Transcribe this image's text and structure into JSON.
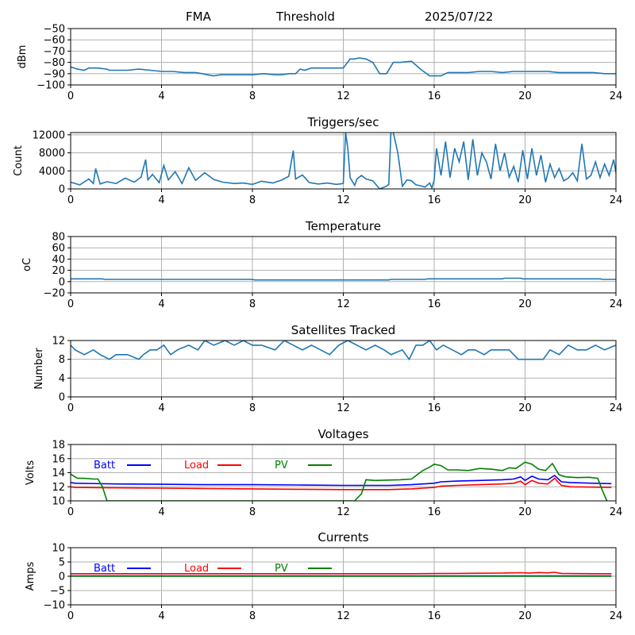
{
  "header": {
    "station": "FMA",
    "mode": "Threshold",
    "date": "2025/07/22"
  },
  "colors": {
    "series_default": "#1f77b4",
    "batt": "#0000ff",
    "load": "#ff0000",
    "pv": "#008000",
    "grid": "#b0b0b0"
  },
  "chart_data": [
    {
      "type": "line",
      "title": "",
      "xlabel": "",
      "ylabel": "dBm",
      "xlim": [
        0,
        24
      ],
      "ylim": [
        -100,
        -50
      ],
      "xticks": [
        0,
        4,
        8,
        12,
        16,
        20,
        24
      ],
      "yticks": [
        -100,
        -90,
        -80,
        -70,
        -60,
        -50
      ],
      "grid": true,
      "series": [
        {
          "color": "#1f77b4",
          "x": [
            0,
            0.3,
            0.6,
            0.8,
            1.2,
            1.6,
            1.7,
            2.5,
            3.0,
            3.5,
            4.0,
            4.5,
            5.0,
            5.5,
            5.8,
            6.0,
            6.3,
            6.6,
            7.0,
            7.5,
            8.0,
            8.5,
            9.0,
            9.3,
            9.6,
            9.9,
            10.1,
            10.3,
            10.6,
            11.0,
            11.5,
            12.0,
            12.3,
            12.5,
            12.7,
            13.0,
            13.3,
            13.6,
            13.9,
            14.2,
            14.5,
            15.0,
            15.4,
            15.8,
            16.0,
            16.3,
            16.6,
            16.9,
            17.2,
            17.5,
            18.0,
            18.5,
            19.0,
            19.5,
            20.0,
            20.5,
            21.0,
            21.5,
            22.0,
            22.5,
            23.0,
            23.5,
            24.0
          ],
          "y": [
            -84,
            -86,
            -87,
            -85,
            -85,
            -86,
            -87,
            -87,
            -86,
            -87,
            -88,
            -88,
            -89,
            -89,
            -90,
            -91,
            -92,
            -91,
            -91,
            -91,
            -91,
            -90,
            -91,
            -91,
            -90,
            -90,
            -86,
            -87,
            -85,
            -85,
            -85,
            -85,
            -77,
            -77,
            -76,
            -77,
            -80,
            -90,
            -90,
            -80,
            -80,
            -79,
            -86,
            -92,
            -92,
            -92,
            -89,
            -89,
            -89,
            -89,
            -88,
            -88,
            -89,
            -88,
            -88,
            -88,
            -88,
            -89,
            -89,
            -89,
            -89,
            -90,
            -90
          ]
        }
      ]
    },
    {
      "type": "line",
      "title": "Triggers/sec",
      "xlabel": "",
      "ylabel": "Count",
      "xlim": [
        0,
        24
      ],
      "ylim": [
        0,
        12500
      ],
      "xticks": [
        0,
        4,
        8,
        12,
        16,
        20,
        24
      ],
      "yticks": [
        0,
        4000,
        8000,
        12000
      ],
      "grid": true,
      "series": [
        {
          "color": "#1f77b4",
          "x": [
            0,
            0.4,
            0.8,
            1.0,
            1.1,
            1.3,
            1.6,
            2.0,
            2.4,
            2.8,
            3.1,
            3.3,
            3.4,
            3.6,
            3.9,
            4.1,
            4.3,
            4.6,
            4.9,
            5.2,
            5.5,
            5.9,
            6.3,
            6.7,
            7.2,
            7.6,
            8.0,
            8.4,
            8.9,
            9.3,
            9.6,
            9.8,
            9.9,
            10.2,
            10.5,
            10.9,
            11.3,
            11.7,
            12.0,
            12.1,
            12.2,
            12.3,
            12.5,
            12.6,
            12.8,
            13.0,
            13.3,
            13.6,
            13.9,
            14.0,
            14.1,
            14.2,
            14.4,
            14.6,
            14.8,
            15.0,
            15.2,
            15.4,
            15.6,
            15.8,
            15.9,
            16.0,
            16.1,
            16.3,
            16.5,
            16.7,
            16.9,
            17.1,
            17.3,
            17.5,
            17.7,
            17.9,
            18.1,
            18.3,
            18.5,
            18.7,
            18.9,
            19.1,
            19.3,
            19.5,
            19.7,
            19.9,
            20.1,
            20.3,
            20.5,
            20.7,
            20.9,
            21.1,
            21.3,
            21.5,
            21.7,
            21.9,
            22.1,
            22.3,
            22.5,
            22.7,
            22.9,
            23.1,
            23.3,
            23.5,
            23.7,
            23.9,
            24.0
          ],
          "y": [
            1500,
            900,
            2200,
            1200,
            4500,
            1100,
            1600,
            1200,
            2400,
            1500,
            2600,
            6500,
            2000,
            3200,
            1400,
            5200,
            2000,
            3800,
            1200,
            4700,
            1900,
            3600,
            2100,
            1500,
            1200,
            1300,
            1000,
            1700,
            1300,
            2000,
            2800,
            8500,
            2200,
            3100,
            1400,
            1100,
            1300,
            1000,
            1200,
            12500,
            9000,
            2500,
            800,
            2200,
            3000,
            2200,
            1800,
            0,
            600,
            1000,
            13000,
            12500,
            8000,
            600,
            2000,
            1800,
            900,
            700,
            400,
            1300,
            200,
            2000,
            9000,
            3000,
            10500,
            2500,
            9000,
            6000,
            10500,
            2000,
            11000,
            3000,
            8000,
            6000,
            2200,
            10000,
            4000,
            8000,
            2600,
            5000,
            1500,
            8600,
            2200,
            9000,
            3000,
            7500,
            1500,
            5500,
            2500,
            4500,
            1800,
            2400,
            3600,
            1800,
            10000,
            2200,
            3000,
            6000,
            2500,
            5500,
            3000,
            6500,
            3600
          ]
        }
      ]
    },
    {
      "type": "line",
      "title": "Temperature",
      "xlabel": "",
      "ylabel": "oC",
      "xlim": [
        0,
        24
      ],
      "ylim": [
        -20,
        80
      ],
      "xticks": [
        0,
        4,
        8,
        12,
        16,
        20,
        24
      ],
      "yticks": [
        -20,
        0,
        20,
        40,
        60,
        80
      ],
      "grid": true,
      "series": [
        {
          "color": "#1f77b4",
          "x": [
            0,
            1.4,
            1.5,
            8.0,
            8.1,
            14.0,
            14.1,
            15.6,
            15.7,
            19.0,
            19.1,
            19.8,
            19.9,
            23.3,
            23.4,
            24.0
          ],
          "y": [
            5,
            5,
            4,
            4,
            3,
            3,
            4,
            4,
            5,
            5,
            6,
            6,
            5,
            5,
            4,
            4
          ]
        }
      ]
    },
    {
      "type": "line",
      "title": "Satellites Tracked",
      "xlabel": "",
      "ylabel": "Number",
      "xlim": [
        0,
        24
      ],
      "ylim": [
        0,
        12
      ],
      "xticks": [
        0,
        4,
        8,
        12,
        16,
        20,
        24
      ],
      "yticks": [
        0,
        4,
        8,
        12
      ],
      "grid": true,
      "series": [
        {
          "color": "#1f77b4",
          "x": [
            0,
            0.2,
            0.6,
            1.0,
            1.3,
            1.7,
            2.0,
            2.5,
            3.0,
            3.2,
            3.5,
            3.8,
            4.1,
            4.4,
            4.7,
            5.2,
            5.6,
            5.9,
            6.3,
            6.8,
            7.2,
            7.6,
            8.0,
            8.4,
            9.0,
            9.4,
            9.8,
            10.2,
            10.6,
            11.0,
            11.4,
            11.8,
            12.2,
            12.6,
            13.0,
            13.4,
            13.8,
            14.1,
            14.6,
            14.9,
            15.2,
            15.5,
            15.8,
            16.1,
            16.4,
            16.8,
            17.2,
            17.5,
            17.8,
            18.2,
            18.5,
            18.9,
            19.3,
            19.7,
            20.1,
            20.5,
            20.8,
            21.1,
            21.5,
            21.9,
            22.3,
            22.7,
            23.1,
            23.5,
            24.0
          ],
          "y": [
            11,
            10,
            9,
            10,
            9,
            8,
            9,
            9,
            8,
            9,
            10,
            10,
            11,
            9,
            10,
            11,
            10,
            12,
            11,
            12,
            11,
            12,
            11,
            11,
            10,
            12,
            11,
            10,
            11,
            10,
            9,
            11,
            12,
            11,
            10,
            11,
            10,
            9,
            10,
            8,
            11,
            11,
            12,
            10,
            11,
            10,
            9,
            10,
            10,
            9,
            10,
            10,
            10,
            8,
            8,
            8,
            8,
            10,
            9,
            11,
            10,
            10,
            11,
            10,
            11
          ]
        }
      ]
    },
    {
      "type": "line",
      "title": "Voltages",
      "xlabel": "",
      "ylabel": "Volts",
      "xlim": [
        0,
        24
      ],
      "ylim": [
        10,
        18
      ],
      "xticks": [
        0,
        4,
        8,
        12,
        16,
        20,
        24
      ],
      "yticks": [
        10,
        12,
        14,
        16,
        18
      ],
      "grid": true,
      "legend": "top-left",
      "series": [
        {
          "name": "Batt",
          "color": "#0000ff",
          "x": [
            0,
            0.2,
            2,
            4,
            6,
            8,
            10,
            12,
            14,
            15,
            15.5,
            16,
            16.3,
            17,
            18,
            19,
            19.5,
            19.8,
            20.0,
            20.3,
            20.6,
            21.0,
            21.3,
            21.6,
            22,
            23,
            23.8
          ],
          "y": [
            12.6,
            12.5,
            12.4,
            12.35,
            12.3,
            12.3,
            12.25,
            12.2,
            12.2,
            12.3,
            12.4,
            12.5,
            12.7,
            12.8,
            12.9,
            13.0,
            13.1,
            13.4,
            12.9,
            13.5,
            13.1,
            13.0,
            13.6,
            12.7,
            12.6,
            12.5,
            12.45
          ]
        },
        {
          "name": "Load",
          "color": "#ff0000",
          "x": [
            0,
            0.2,
            2,
            4,
            6,
            8,
            10,
            12,
            14,
            15,
            15.5,
            16,
            16.3,
            17,
            18,
            19,
            19.5,
            19.8,
            20.0,
            20.3,
            20.6,
            21.0,
            21.3,
            21.6,
            22,
            23,
            23.8
          ],
          "y": [
            12.0,
            11.9,
            11.85,
            11.8,
            11.75,
            11.7,
            11.65,
            11.6,
            11.6,
            11.7,
            11.8,
            11.9,
            12.1,
            12.2,
            12.3,
            12.4,
            12.5,
            12.8,
            12.3,
            12.9,
            12.5,
            12.4,
            13.2,
            12.2,
            12.0,
            11.95,
            11.9
          ]
        },
        {
          "name": "PV",
          "color": "#008000",
          "x": [
            0,
            0.3,
            0.6,
            1.0,
            1.2,
            1.4,
            1.6,
            12.5,
            12.8,
            13.0,
            13.4,
            14,
            14.5,
            15.0,
            15.5,
            15.8,
            16.0,
            16.3,
            16.6,
            17,
            17.5,
            18,
            18.5,
            19,
            19.3,
            19.6,
            20.0,
            20.3,
            20.6,
            20.9,
            21.2,
            21.5,
            21.8,
            22.3,
            22.8,
            23.2,
            23.4,
            23.6
          ],
          "y": [
            13.8,
            13.2,
            13.2,
            13.1,
            13.1,
            12.0,
            10.0,
            10.0,
            11.0,
            13.0,
            12.9,
            12.95,
            13.0,
            13.1,
            14.3,
            14.8,
            15.2,
            15.0,
            14.4,
            14.4,
            14.3,
            14.6,
            14.5,
            14.3,
            14.7,
            14.6,
            15.5,
            15.2,
            14.5,
            14.3,
            15.3,
            13.7,
            13.4,
            13.3,
            13.35,
            13.2,
            11.5,
            10.0
          ]
        }
      ]
    },
    {
      "type": "line",
      "title": "Currents",
      "xlabel": "",
      "ylabel": "Amps",
      "xlim": [
        0,
        24
      ],
      "ylim": [
        -10,
        10
      ],
      "xticks": [
        0,
        4,
        8,
        12,
        16,
        20,
        24
      ],
      "yticks": [
        -10,
        -5,
        0,
        5,
        10
      ],
      "grid": true,
      "legend": "top-left",
      "series": [
        {
          "name": "Batt",
          "color": "#0000ff",
          "x": [
            0,
            4,
            8,
            12,
            16,
            20,
            23.8
          ],
          "y": [
            0.1,
            0.1,
            0.1,
            0.1,
            0.1,
            0.1,
            0.1
          ]
        },
        {
          "name": "Load",
          "color": "#ff0000",
          "x": [
            0,
            4,
            8,
            12,
            15,
            16,
            17,
            18,
            19,
            19.8,
            20.2,
            20.6,
            21.0,
            21.3,
            21.6,
            22,
            23,
            23.8
          ],
          "y": [
            0.9,
            0.9,
            0.9,
            0.9,
            0.9,
            0.95,
            1.0,
            1.05,
            1.1,
            1.25,
            1.15,
            1.3,
            1.2,
            1.4,
            1.0,
            0.95,
            0.9,
            0.9
          ]
        },
        {
          "name": "PV",
          "color": "#008000",
          "x": [
            0,
            4,
            8,
            12,
            16,
            20,
            23.8
          ],
          "y": [
            0,
            0,
            0,
            0,
            0,
            0,
            0
          ]
        }
      ]
    }
  ]
}
